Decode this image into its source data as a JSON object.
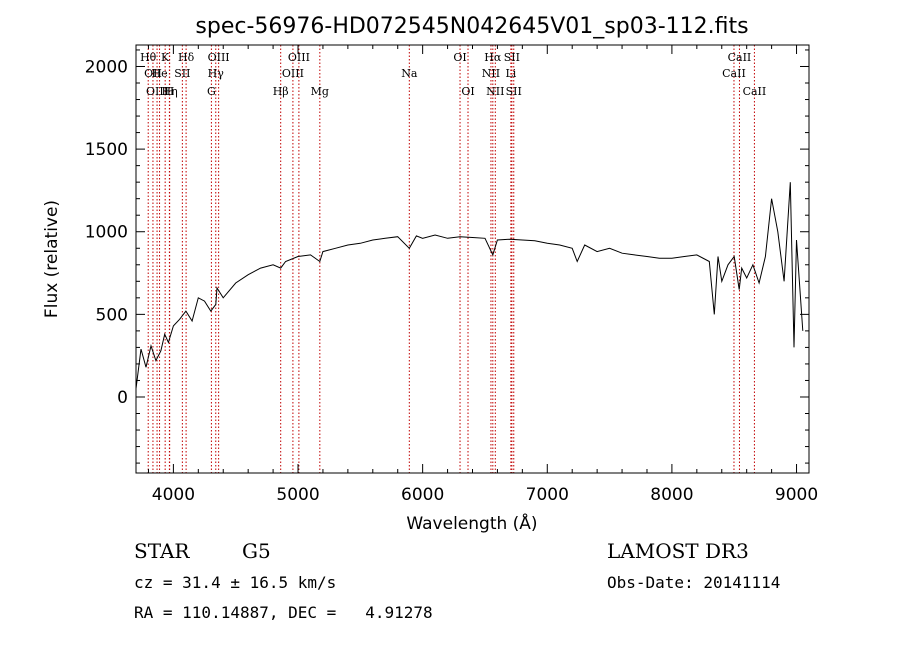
{
  "chart_data": {
    "type": "line",
    "title": "spec-56976-HD072545N042645V01_sp03-112.fits",
    "xlabel": "Wavelength (Å)",
    "ylabel": "Flux (relative)",
    "xlim": [
      3700,
      9100
    ],
    "ylim": [
      -460,
      2130
    ],
    "xticks": [
      4000,
      5000,
      6000,
      7000,
      8000,
      9000
    ],
    "yticks": [
      0,
      500,
      1000,
      1500,
      2000
    ],
    "series": [
      {
        "x": [
          3700,
          3740,
          3780,
          3820,
          3860,
          3900,
          3930,
          3960,
          4000,
          4050,
          4100,
          4150,
          4200,
          4250,
          4300,
          4340,
          4350,
          4400,
          4500,
          4600,
          4700,
          4800,
          4861,
          4900,
          5000,
          5100,
          5175,
          5200,
          5300,
          5400,
          5500,
          5600,
          5700,
          5800,
          5893,
          5950,
          6000,
          6100,
          6200,
          6300,
          6400,
          6500,
          6563,
          6600,
          6700,
          6800,
          6900,
          7000,
          7100,
          7200,
          7240,
          7300,
          7400,
          7500,
          7600,
          7700,
          7800,
          7900,
          8000,
          8100,
          8200,
          8300,
          8340,
          8370,
          8400,
          8450,
          8500,
          8540,
          8560,
          8600,
          8650,
          8700,
          8750,
          8800,
          8850,
          8900,
          8950,
          8980,
          9000,
          9050
        ],
        "values": [
          50,
          290,
          180,
          310,
          220,
          280,
          380,
          330,
          430,
          470,
          520,
          460,
          600,
          580,
          520,
          560,
          660,
          600,
          690,
          740,
          780,
          800,
          780,
          820,
          850,
          860,
          820,
          880,
          900,
          920,
          930,
          950,
          960,
          970,
          900,
          975,
          960,
          980,
          960,
          970,
          965,
          960,
          860,
          950,
          955,
          950,
          945,
          930,
          920,
          900,
          820,
          920,
          880,
          900,
          870,
          860,
          850,
          840,
          840,
          850,
          860,
          820,
          500,
          850,
          700,
          800,
          850,
          650,
          780,
          720,
          800,
          690,
          850,
          1200,
          1000,
          700,
          1300,
          300,
          950,
          400
        ]
      }
    ],
    "lines": [
      {
        "wl": 3798,
        "label": "Hθ",
        "row": 1
      },
      {
        "wl": 3836,
        "label": "OII",
        "row": 2
      },
      {
        "wl": 3869,
        "label": "OIII",
        "row": 3
      },
      {
        "wl": 3889,
        "label": "He",
        "row": 2
      },
      {
        "wl": 3934,
        "label": "K",
        "row": 1
      },
      {
        "wl": 3970,
        "label": "Hη",
        "row": 3
      },
      {
        "wl": 3968,
        "label": "H",
        "row": 3
      },
      {
        "wl": 4072,
        "label": "SII",
        "row": 2
      },
      {
        "wl": 4102,
        "label": "Hδ",
        "row": 1
      },
      {
        "wl": 4305,
        "label": "G",
        "row": 3
      },
      {
        "wl": 4340,
        "label": "Hγ",
        "row": 2
      },
      {
        "wl": 4363,
        "label": "OIII",
        "row": 1
      },
      {
        "wl": 4861,
        "label": "Hβ",
        "row": 3
      },
      {
        "wl": 4959,
        "label": "OIII",
        "row": 2
      },
      {
        "wl": 5007,
        "label": "OIII",
        "row": 1
      },
      {
        "wl": 5175,
        "label": "Mg",
        "row": 3
      },
      {
        "wl": 5893,
        "label": "Na",
        "row": 2
      },
      {
        "wl": 6300,
        "label": "OI",
        "row": 1
      },
      {
        "wl": 6364,
        "label": "OI",
        "row": 3
      },
      {
        "wl": 6548,
        "label": "NII",
        "row": 2
      },
      {
        "wl": 6563,
        "label": "Hα",
        "row": 1
      },
      {
        "wl": 6583,
        "label": "NII",
        "row": 3
      },
      {
        "wl": 6708,
        "label": "Li",
        "row": 2
      },
      {
        "wl": 6716,
        "label": "SII",
        "row": 1
      },
      {
        "wl": 6731,
        "label": "SII",
        "row": 3
      },
      {
        "wl": 8498,
        "label": "CaII",
        "row": 2
      },
      {
        "wl": 8542,
        "label": "CaII",
        "row": 1
      },
      {
        "wl": 8662,
        "label": "CaII",
        "row": 3
      }
    ]
  },
  "info": {
    "object_class": "STAR",
    "subclass": "G5",
    "survey": "LAMOST DR3",
    "cz": "cz = 31.4 ± 16.5 km/s",
    "obs_date": "Obs-Date: 20141114",
    "radec": "RA = 110.14887, DEC =   4.91278"
  }
}
